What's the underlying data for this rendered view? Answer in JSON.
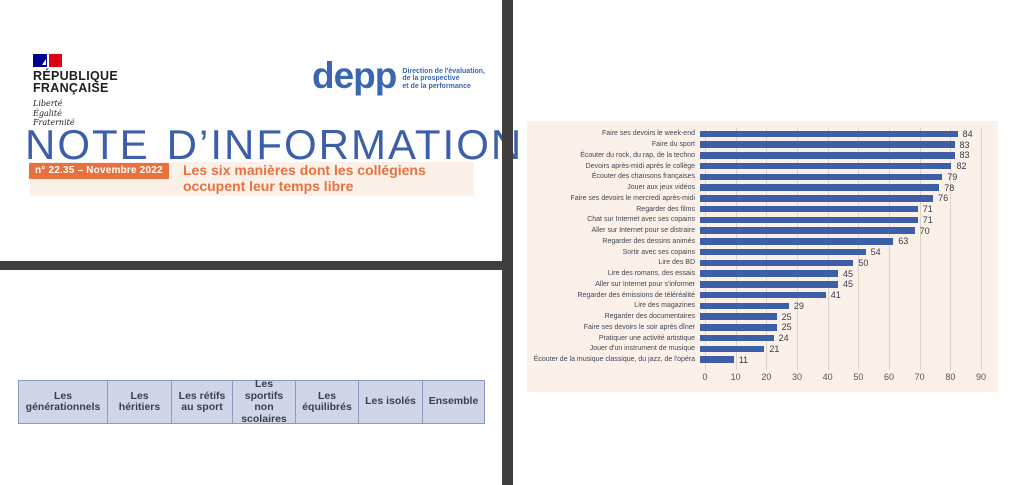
{
  "branding": {
    "republique_line1": "RÉPUBLIQUE",
    "republique_line2": "FRANÇAISE",
    "devise": [
      "Liberté",
      "Égalité",
      "Fraternité"
    ],
    "depp_logo": "depp",
    "depp_org_lines": [
      "Direction de l'évaluation,",
      "de la prospective",
      "et de la performance"
    ]
  },
  "masthead": {
    "title_word1": "NOTE",
    "title_word2": "D’INFORMATION",
    "issue_badge": "n° 22.35 – Novembre 2022",
    "subtitle_line1": "Les six manières dont les collégiens",
    "subtitle_line2": "occupent leur temps libre"
  },
  "table": {
    "headers": [
      "Les générationnels",
      "Les héritiers",
      "Les rétifs au sport",
      "Les sportifs non scolaires",
      "Les équilibrés",
      "Les isolés",
      "Ensemble"
    ]
  },
  "chart_data": {
    "type": "bar",
    "orientation": "horizontal",
    "title": "",
    "xlabel": "",
    "ylabel": "",
    "categories": [
      "Faire ses devoirs le week-end",
      "Faire du sport",
      "Écouter du rock, du rap, de la techno",
      "Devoirs après-midi après le collège",
      "Écouter des chansons françaises",
      "Jouer aux jeux vidéos",
      "Faire ses devoirs le mercredi après-midi",
      "Regarder des films",
      "Chat sur Internet avec ses copains",
      "Aller sur Internet pour se distraire",
      "Regarder des dessins animés",
      "Sortir avec ses copains",
      "Lire des BD",
      "Lire des romans, des essais",
      "Aller sur Internet pour s'informer",
      "Regarder des émissions de téléréalité",
      "Lire des magazines",
      "Regarder des documentaires",
      "Faire ses devoirs le soir après dîner",
      "Pratiquer une activité artistique",
      "Jouer d'un instrument de musique",
      "Écouter de la musique classique, du jazz, de l'opéra"
    ],
    "values": [
      84,
      83,
      83,
      82,
      79,
      78,
      76,
      71,
      71,
      70,
      63,
      54,
      50,
      45,
      45,
      41,
      29,
      25,
      25,
      24,
      21,
      11
    ],
    "xlim": [
      0,
      90
    ],
    "xticks": [
      0,
      10,
      20,
      30,
      40,
      50,
      60,
      70,
      80,
      90
    ],
    "grid": true,
    "legend": false,
    "bar_color": "#3c5fa8",
    "background": "#fbf1e8"
  },
  "colors": {
    "title_blue": "#3d5fa9",
    "depp_blue": "#3a67b1",
    "accent_orange": "#e9713e",
    "cream_band": "#fbf1e8",
    "table_fill": "#d0d6e8",
    "table_border": "#8b9cc4",
    "divider_gray": "#3f3f3f",
    "flag_blue": "#000091",
    "flag_red": "#e1000f"
  }
}
